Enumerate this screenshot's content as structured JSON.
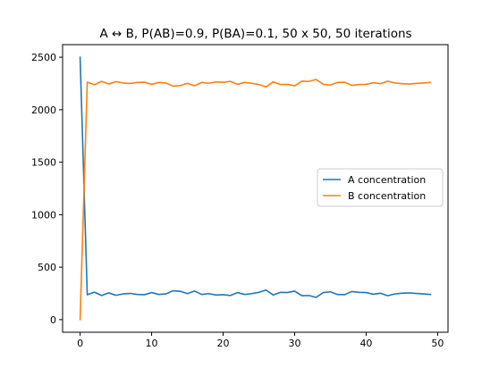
{
  "chart_data": {
    "type": "line",
    "title": "A ↔ B, P(AB)=0.9, P(BA)=0.1, 50 x 50, 50 iterations",
    "xlabel": "",
    "ylabel": "",
    "xlim": [
      -2.45,
      51.45
    ],
    "ylim": [
      -120,
      2620
    ],
    "xticks": [
      0,
      10,
      20,
      30,
      40,
      50
    ],
    "yticks": [
      0,
      500,
      1000,
      1500,
      2000,
      2500
    ],
    "grid": false,
    "legend_position": "center right",
    "x": [
      0,
      1,
      2,
      3,
      4,
      5,
      6,
      7,
      8,
      9,
      10,
      11,
      12,
      13,
      14,
      15,
      16,
      17,
      18,
      19,
      20,
      21,
      22,
      23,
      24,
      25,
      26,
      27,
      28,
      29,
      30,
      31,
      32,
      33,
      34,
      35,
      36,
      37,
      38,
      39,
      40,
      41,
      42,
      43,
      44,
      45,
      46,
      47,
      48,
      49
    ],
    "series": [
      {
        "name": "A concentration",
        "color": "#1f77b4",
        "values": [
          2500,
          237,
          262,
          230,
          255,
          232,
          245,
          250,
          240,
          238,
          258,
          240,
          245,
          275,
          270,
          248,
          272,
          240,
          248,
          235,
          238,
          230,
          258,
          240,
          248,
          260,
          282,
          235,
          260,
          258,
          272,
          228,
          230,
          212,
          258,
          265,
          240,
          238,
          268,
          260,
          258,
          242,
          252,
          228,
          245,
          252,
          255,
          250,
          245,
          240
        ]
      },
      {
        "name": "B concentration",
        "color": "#ff7f0e",
        "values": [
          0,
          2263,
          2238,
          2270,
          2245,
          2268,
          2255,
          2250,
          2260,
          2262,
          2242,
          2260,
          2255,
          2225,
          2230,
          2252,
          2228,
          2260,
          2252,
          2265,
          2262,
          2270,
          2242,
          2260,
          2252,
          2240,
          2218,
          2265,
          2240,
          2242,
          2228,
          2272,
          2270,
          2288,
          2242,
          2235,
          2260,
          2262,
          2232,
          2240,
          2242,
          2258,
          2248,
          2272,
          2255,
          2248,
          2245,
          2250,
          2255,
          2260
        ]
      }
    ]
  }
}
